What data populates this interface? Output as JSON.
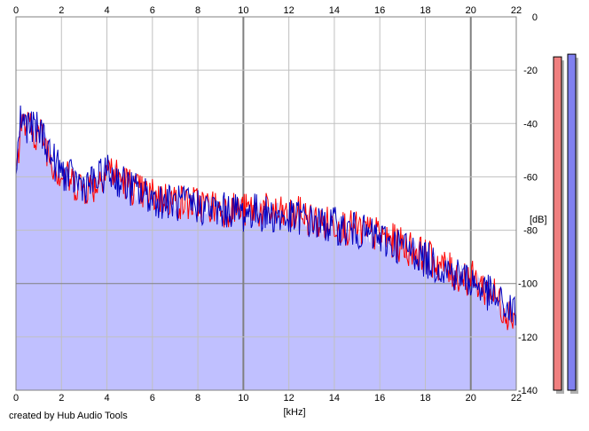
{
  "footer": {
    "credit": "created by Hub Audio Tools"
  },
  "chart_data": {
    "type": "area",
    "xlabel": "[kHz]",
    "ylabel": "[dB]",
    "xlim": [
      0,
      22
    ],
    "ylim": [
      -140,
      0
    ],
    "x_ticks": [
      "0",
      "2",
      "4",
      "6",
      "8",
      "10",
      "12",
      "14",
      "16",
      "18",
      "20",
      "22"
    ],
    "y_ticks": [
      "0",
      "-20",
      "-40",
      "-60",
      "-80",
      "-100",
      "-120",
      "-140"
    ],
    "grid": true,
    "colors": {
      "fill": "#c0c0ff",
      "channel_1": "#ff0000",
      "channel_2": "#0000c0",
      "meter_1": "#f08080",
      "meter_2": "#8080f0"
    },
    "series": [
      {
        "x": [
          0,
          0.2,
          0.4,
          0.6,
          0.8,
          1.0,
          1.2,
          1.4,
          1.6,
          1.8,
          2.0,
          2.5,
          3.0,
          3.5,
          4.0,
          4.5,
          5.0,
          5.5,
          6.0,
          6.5,
          7.0,
          7.5,
          8.0,
          8.5,
          9.0,
          9.5,
          10.0,
          10.5,
          11.0,
          11.5,
          12.0,
          12.5,
          13.0,
          13.5,
          14.0,
          14.5,
          15.0,
          15.5,
          16.0,
          16.5,
          17.0,
          17.5,
          18.0,
          18.5,
          19.0,
          19.5,
          20.0,
          20.5,
          21.0,
          21.5,
          22.0
        ],
        "values": [
          -60,
          -40,
          -41,
          -42,
          -43,
          -44,
          -45,
          -50,
          -54,
          -57,
          -59,
          -62,
          -64,
          -63,
          -56,
          -60,
          -63,
          -66,
          -67,
          -68,
          -69,
          -70,
          -70,
          -71,
          -72,
          -72,
          -73,
          -72,
          -73,
          -74,
          -75,
          -74,
          -76,
          -78,
          -77,
          -79,
          -80,
          -81,
          -82,
          -84,
          -86,
          -87,
          -90,
          -92,
          -95,
          -97,
          -98,
          -101,
          -104,
          -110,
          -112
        ]
      },
      {
        "x": [
          0,
          0.2,
          0.4,
          0.6,
          0.8,
          1.0,
          1.2,
          1.4,
          1.6,
          1.8,
          2.0,
          2.5,
          3.0,
          3.5,
          4.0,
          4.5,
          5.0,
          5.5,
          6.0,
          6.5,
          7.0,
          7.5,
          8.0,
          8.5,
          9.0,
          9.5,
          10.0,
          10.5,
          11.0,
          11.5,
          12.0,
          12.5,
          13.0,
          13.5,
          14.0,
          14.5,
          15.0,
          15.5,
          16.0,
          16.5,
          17.0,
          17.5,
          18.0,
          18.5,
          19.0,
          19.5,
          20.0,
          20.5,
          21.0,
          21.5,
          22.0
        ],
        "values": [
          -58,
          -38,
          -40,
          -41,
          -42,
          -43,
          -44,
          -49,
          -53,
          -56,
          -58,
          -61,
          -63,
          -62,
          -58,
          -61,
          -64,
          -66,
          -68,
          -69,
          -70,
          -70,
          -71,
          -72,
          -73,
          -72,
          -74,
          -73,
          -74,
          -75,
          -76,
          -75,
          -77,
          -78,
          -78,
          -80,
          -80,
          -82,
          -83,
          -85,
          -86,
          -88,
          -91,
          -93,
          -95,
          -97,
          -99,
          -102,
          -105,
          -109,
          -111
        ]
      }
    ],
    "meters": [
      {
        "top": -15,
        "bottom": -140
      },
      {
        "top": -14,
        "bottom": -140
      }
    ]
  }
}
